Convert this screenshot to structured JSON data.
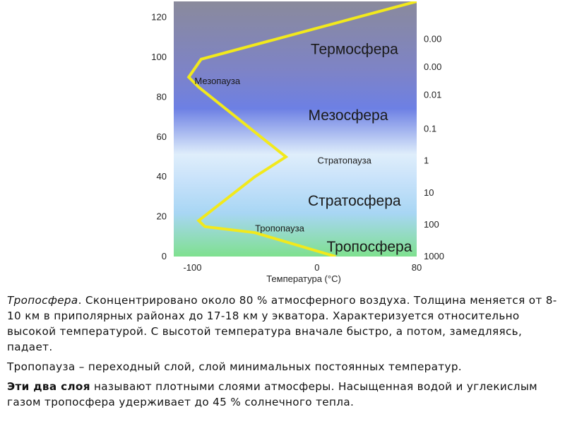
{
  "chart_data": {
    "type": "line",
    "xlabel": "Температура (°C)",
    "ylabel": "",
    "xlim": [
      -115,
      80
    ],
    "ylim": [
      0,
      128
    ],
    "x_ticks": [
      "-100",
      "0",
      "80"
    ],
    "x_tick_values": [
      -100,
      0,
      80
    ],
    "y_ticks": [
      "0",
      "20",
      "40",
      "60",
      "80",
      "100",
      "120"
    ],
    "y_tick_values": [
      0,
      20,
      40,
      60,
      80,
      100,
      120
    ],
    "pressure_ticks": [
      {
        "label": "0.00",
        "altitude": 109
      },
      {
        "label": "0.00",
        "altitude": 95
      },
      {
        "label": "0.01",
        "altitude": 81
      },
      {
        "label": "0.1",
        "altitude": 64
      },
      {
        "label": "1",
        "altitude": 48
      },
      {
        "label": "10",
        "altitude": 32
      },
      {
        "label": "100",
        "altitude": 16
      },
      {
        "label": "1000",
        "altitude": 0
      }
    ],
    "series": [
      {
        "x": [
          15,
          -50,
          -90,
          -95,
          -50,
          -25,
          -95,
          -103,
          -93,
          80
        ],
        "y": [
          0,
          12,
          15,
          18,
          40,
          50,
          85,
          90,
          99,
          128
        ]
      }
    ],
    "line_color": "#f2e91c",
    "layer_labels": [
      {
        "text": "Термосфера",
        "x": 30,
        "y": 104,
        "size": "large"
      },
      {
        "text": "Мезопауза",
        "x": -80,
        "y": 88,
        "size": "small"
      },
      {
        "text": "Мезосфера",
        "x": 25,
        "y": 71,
        "size": "large"
      },
      {
        "text": "Стратопауза",
        "x": 22,
        "y": 48,
        "size": "small"
      },
      {
        "text": "Стратосфера",
        "x": 30,
        "y": 28,
        "size": "large"
      },
      {
        "text": "Тропопауза",
        "x": -30,
        "y": 14,
        "size": "small"
      },
      {
        "text": "Тропосфера",
        "x": 42,
        "y": 5,
        "size": "large"
      }
    ],
    "background_gradient": [
      "#8a8a9c",
      "#7d83c8",
      "#6d80e4",
      "#dfeefb",
      "#c8e2fa",
      "#a8d6f4",
      "#7fe08f"
    ]
  },
  "text": {
    "p1_term": "Тропосфера",
    "p1_rest": ". Сконцентрировано около 80 % атмосферного воздуха. Толщина меняется от 8-10 км в приполярных районах до 17-18 км у экватора. Характеризуется относительно высокой температурой. С высотой температура вначале быстро, а потом, замедляясь, падает.",
    "p2": "Тропопауза – переходный слой, слой минимальных постоянных температур.",
    "p3_bold": "Эти два слоя",
    "p3_rest": " называют плотными слоями атмосферы. Насыщенная водой и углекислым газом тропосфера удерживает до 45 % солнечного тепла."
  }
}
